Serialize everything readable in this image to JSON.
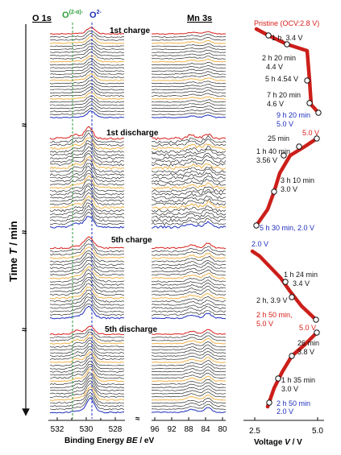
{
  "colors": {
    "pristine": "#d8201c",
    "discharge_end": "#1f2fbe",
    "highlight": "#f0b24a",
    "spectrum": "#111111",
    "o_2minus_line": "#1f2fbe",
    "o_2minus_alpha_line": "#2e9e3c",
    "path": "#cc1f1a"
  },
  "headers": {
    "o1s": "O 1s",
    "mn3s": "Mn 3s",
    "o_defect": "O",
    "o_defect_sup": "(2-α)-",
    "o_lattice": "O",
    "o_lattice_sup": "2-"
  },
  "y_axis": {
    "label_prefix": "Time ",
    "label_var": "T",
    "label_suffix": " / min"
  },
  "x_axis": {
    "label_prefix": "Binding Energy ",
    "label_var": "BE",
    "label_suffix": " / eV",
    "o1s_ticks": [
      "532",
      "530",
      "528"
    ],
    "mn3s_ticks": [
      "96",
      "92",
      "88",
      "84",
      "80"
    ],
    "mn3s_ticks_minor": [
      "94",
      "90",
      "86",
      "82"
    ]
  },
  "voltage_axis": {
    "label_prefix": "Voltage ",
    "label_var": "V",
    "label_suffix": " / V",
    "ticks": [
      "2.5",
      "5.0"
    ]
  },
  "panels": [
    {
      "title": "1st charge",
      "points": [
        {
          "label": "Pristine (OCV:2.8 V)",
          "color": "red"
        },
        {
          "label": "1 h, 3.4 V",
          "color": "black"
        },
        {
          "label": "2 h 20 min",
          "label2": "4.4 V",
          "color": "black"
        },
        {
          "label": "5 h 4.54 V",
          "color": "black"
        },
        {
          "label": "7 h 20 min",
          "label2": "4.6 V",
          "color": "black"
        },
        {
          "label": "9 h 20 min",
          "label2": "5.0 V",
          "color": "blue"
        }
      ]
    },
    {
      "title": "1st discharge",
      "points": [
        {
          "label": "5.0 V",
          "color": "red"
        },
        {
          "label": "25 min",
          "color": "black"
        },
        {
          "label": "1 h 40 min",
          "label2": "3.56 V",
          "color": "black"
        },
        {
          "label": "3 h 10 min",
          "label2": "3.0 V",
          "color": "black"
        },
        {
          "label": "5 h 30 min, 2.0 V",
          "color": "blue"
        }
      ]
    },
    {
      "title": "5th charge",
      "points": [
        {
          "label": "2.0 V",
          "color": "blue"
        },
        {
          "label": "1 h 24 min",
          "label2": "3.4 V",
          "color": "black"
        },
        {
          "label": "2 h, 3.9 V",
          "color": "black"
        },
        {
          "label": "2 h 50 min,",
          "label2": "5.0 V",
          "color": "red"
        }
      ]
    },
    {
      "title": "5th discharge",
      "points": [
        {
          "label": "5.0 V",
          "color": "red"
        },
        {
          "label": "26 min",
          "label2": "3.8 V",
          "color": "black"
        },
        {
          "label": "1 h 35 min",
          "label2": "3.0 V",
          "color": "black"
        },
        {
          "label": "2 h 50 min",
          "label2": "2.0 V",
          "color": "blue"
        }
      ]
    }
  ]
}
